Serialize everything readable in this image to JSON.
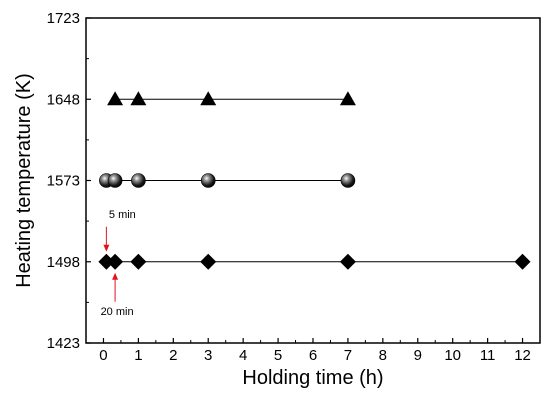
{
  "chart_data": {
    "type": "scatter",
    "xlabel": "Holding time (h)",
    "ylabel": "Heating temperature (K)",
    "xlim": [
      -0.5,
      12.5
    ],
    "ylim": [
      1423,
      1723
    ],
    "xticks": [
      0,
      1,
      2,
      3,
      4,
      5,
      6,
      7,
      8,
      9,
      10,
      11,
      12
    ],
    "yticks": [
      1423,
      1498,
      1573,
      1648,
      1723
    ],
    "grid": false,
    "series": [
      {
        "marker": "triangle",
        "y": 1648,
        "x": [
          0.333,
          1,
          3,
          7
        ],
        "color": "#000000"
      },
      {
        "marker": "sphere",
        "y": 1573,
        "x": [
          0.0833,
          0.333,
          1,
          3,
          7
        ],
        "color": "#000000"
      },
      {
        "marker": "diamond",
        "y": 1498,
        "x": [
          0.0833,
          0.333,
          1,
          3,
          7,
          12
        ],
        "color": "#000000"
      }
    ],
    "annotations": [
      {
        "text": "5 min",
        "x": 0.0833,
        "y": 1498,
        "position": "above",
        "arrow_color": "#e0141e"
      },
      {
        "text": "20 min",
        "x": 0.333,
        "y": 1498,
        "position": "below",
        "arrow_color": "#e0141e"
      }
    ]
  }
}
